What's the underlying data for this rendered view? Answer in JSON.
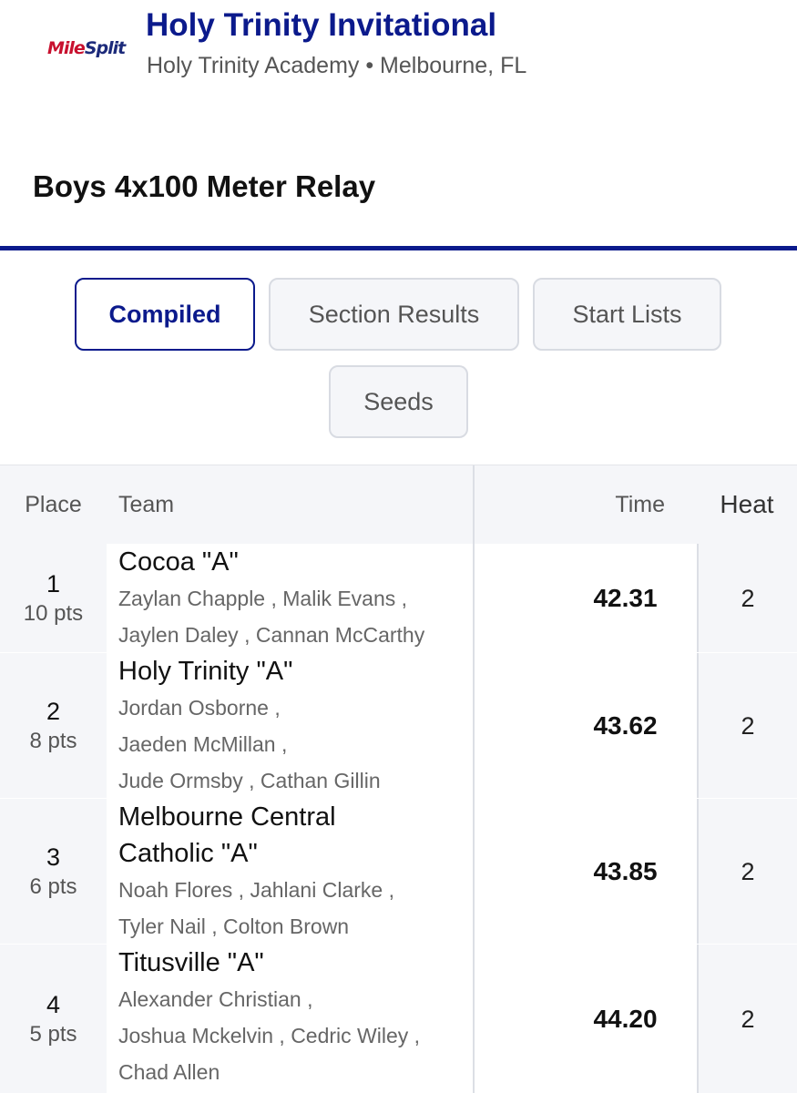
{
  "header": {
    "logo": {
      "mile": "Mile",
      "split": "Split"
    },
    "meet_title": "Holy Trinity Invitational",
    "meet_subtitle": "Holy Trinity Academy • Melbourne, FL"
  },
  "event": {
    "title": "Boys 4x100 Meter Relay"
  },
  "tabs": [
    {
      "label": "Compiled",
      "active": true
    },
    {
      "label": "Section Results",
      "active": false
    },
    {
      "label": "Start Lists",
      "active": false
    },
    {
      "label": "Seeds",
      "active": false
    }
  ],
  "colors": {
    "brand_blue": "#0b1a8c",
    "logo_red": "#c8102e"
  },
  "table": {
    "headers": {
      "place": "Place",
      "team": "Team",
      "time": "Time",
      "heat": "Heat"
    },
    "rows": [
      {
        "place": "1",
        "points": "10 pts",
        "team_lines": [
          "Cocoa \"A\""
        ],
        "athlete_lines": [
          "Zaylan Chapple ,  Malik Evans ,",
          "Jaylen Daley ,  Cannan McCarthy"
        ],
        "time": "42.31",
        "heat": "2"
      },
      {
        "place": "2",
        "points": "8 pts",
        "team_lines": [
          "Holy Trinity \"A\""
        ],
        "athlete_lines": [
          "Jordan Osborne ,",
          "Jaeden McMillan ,",
          "Jude Ormsby ,  Cathan Gillin"
        ],
        "time": "43.62",
        "heat": "2"
      },
      {
        "place": "3",
        "points": "6 pts",
        "team_lines": [
          "Melbourne Central",
          "Catholic \"A\""
        ],
        "athlete_lines": [
          "Noah Flores ,  Jahlani Clarke ,",
          "Tyler Nail ,  Colton Brown"
        ],
        "time": "43.85",
        "heat": "2"
      },
      {
        "place": "4",
        "points": "5 pts",
        "team_lines": [
          "Titusville \"A\""
        ],
        "athlete_lines": [
          "Alexander Christian ,",
          "Joshua Mckelvin ,  Cedric Wiley ,",
          "Chad Allen"
        ],
        "time": "44.20",
        "heat": "2"
      }
    ]
  }
}
